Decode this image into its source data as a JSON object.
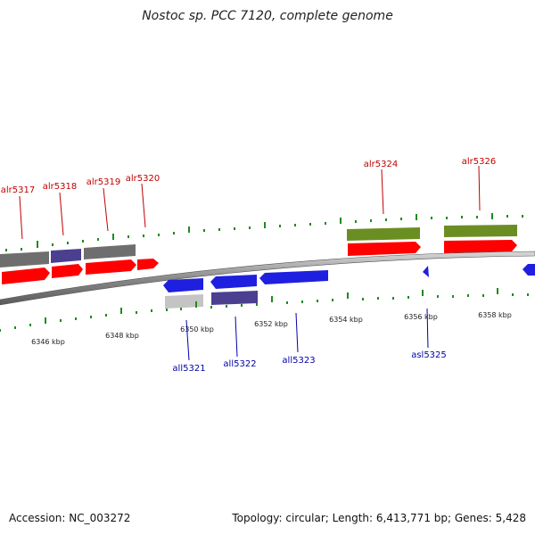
{
  "header": {
    "title": "Nostoc sp. PCC 7120, complete genome"
  },
  "footer": {
    "accession_label": "Accession: NC_003272",
    "topology_label": "Topology: circular; Length: 6,413,771 bp; Genes: 5,428"
  },
  "colors": {
    "forward_label": "#c00000",
    "reverse_label": "#0000aa",
    "cds_red": "#ff0000",
    "cds_blue": "#1f1fe0",
    "cog_green": "#6b8e23",
    "cog_gray": "#6e6e6e",
    "cog_purple": "#4b3f8f",
    "cog_lightgray": "#c4c4c4",
    "backbone": "#8a8a8a",
    "tick_green": "#1f8a1f"
  },
  "scale": {
    "labels": [
      "6346 kbp",
      "6348 kbp",
      "6350 kbp",
      "6352 kbp",
      "6354 kbp",
      "6356 kbp",
      "6358 kbp"
    ]
  },
  "genes": {
    "forward": [
      "alr5317",
      "alr5318",
      "alr5319",
      "alr5320",
      "alr5324",
      "alr5326"
    ],
    "reverse": [
      "all5321",
      "all5322",
      "all5323",
      "asl5325"
    ]
  }
}
